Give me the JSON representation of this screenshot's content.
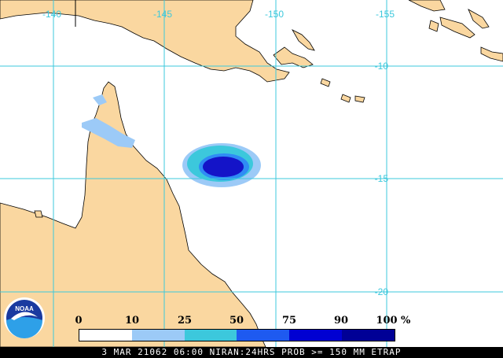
{
  "map": {
    "colors": {
      "ocean": "#ffffff",
      "land": "#fad7a0",
      "grid": "#3cc8dc",
      "coast": "#000000"
    },
    "longitude_labels": [
      "-140",
      "-145",
      "-150",
      "-155"
    ],
    "latitude_labels": [
      "-10",
      "-15",
      "-20"
    ],
    "probability_field": {
      "outer_color": "#3cc8dc",
      "middle_color": "#2f8cf5",
      "core_color": "#1414c8"
    }
  },
  "legend": {
    "ticks": [
      "0",
      "10",
      "25",
      "50",
      "75",
      "90",
      "100"
    ],
    "unit": "%",
    "colors": [
      "#ffffff",
      "#9ccaf7",
      "#3cc8dc",
      "#1e5af0",
      "#0000d2",
      "#000096"
    ]
  },
  "logo": {
    "text": "NOAA",
    "colors": {
      "ring": "#ffffff",
      "sky": "#1a3aa0",
      "sea": "#2ea0e8",
      "bird": "#ffffff"
    }
  },
  "footer": {
    "caption": "3 MAR 21062 06:00 NIRAN:24HRS PROB >= 150 MM ETRAP"
  }
}
